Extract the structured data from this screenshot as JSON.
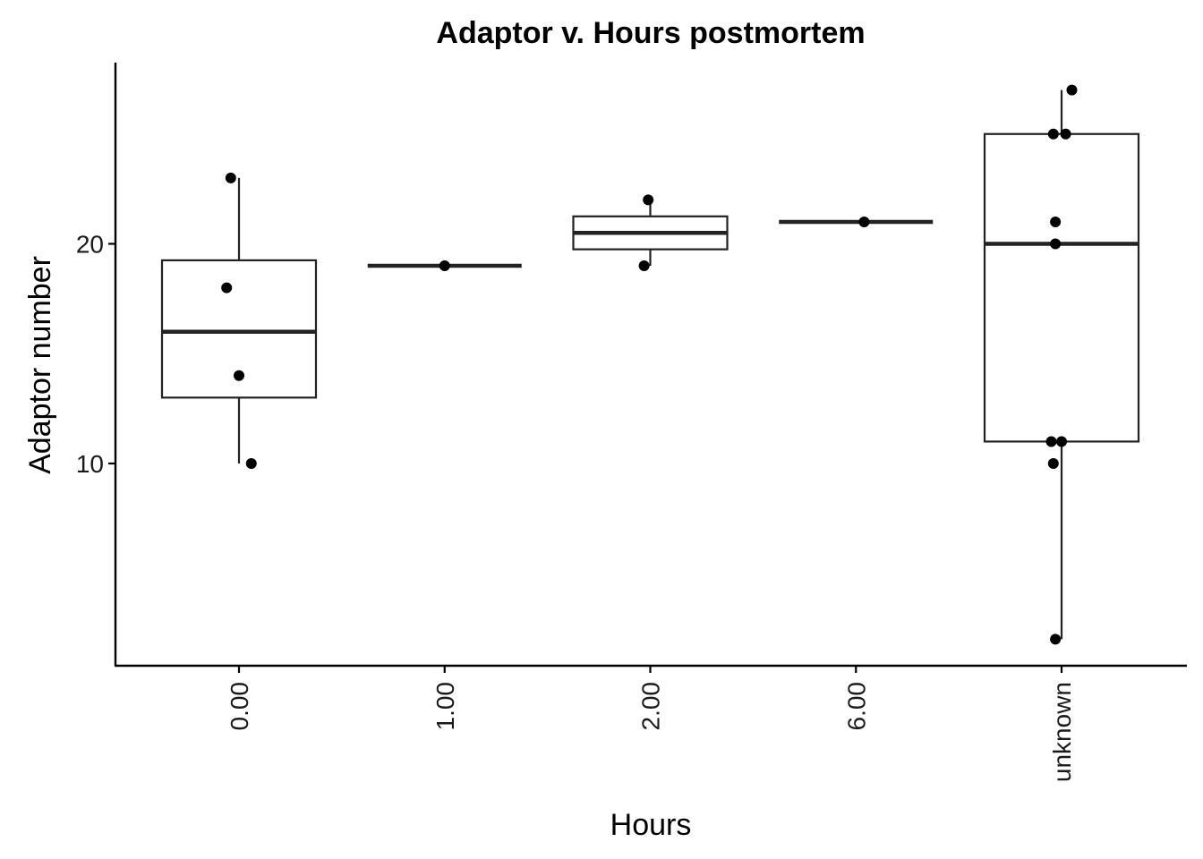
{
  "chart_data": {
    "type": "boxplot",
    "title": "Adaptor v. Hours postmortem",
    "xlabel": "Hours",
    "ylabel": "Adaptor number",
    "categories": [
      "0.00",
      "1.00",
      "2.00",
      "6.00",
      "unknown"
    ],
    "y_ticks": [
      10,
      20
    ],
    "ylim": [
      1,
      28.8
    ],
    "grid": false,
    "legend": "none",
    "boxes": [
      {
        "category": "0.00",
        "q1": 13,
        "median": 16,
        "q3": 19.25,
        "whisker_low": 10,
        "whisker_high": 23
      },
      {
        "category": "1.00",
        "q1": 19,
        "median": 19,
        "q3": 19,
        "whisker_low": 19,
        "whisker_high": 19
      },
      {
        "category": "2.00",
        "q1": 19.75,
        "median": 20.5,
        "q3": 21.25,
        "whisker_low": 19,
        "whisker_high": 22
      },
      {
        "category": "6.00",
        "q1": 21,
        "median": 21,
        "q3": 21,
        "whisker_low": 21,
        "whisker_high": 21
      },
      {
        "category": "unknown",
        "q1": 11,
        "median": 20,
        "q3": 25,
        "whisker_low": 2,
        "whisker_high": 27
      }
    ],
    "points": [
      {
        "category": "0.00",
        "y": 23,
        "jitter": -0.04
      },
      {
        "category": "0.00",
        "y": 18,
        "jitter": -0.06
      },
      {
        "category": "0.00",
        "y": 14,
        "jitter": 0.0
      },
      {
        "category": "0.00",
        "y": 10,
        "jitter": 0.06
      },
      {
        "category": "1.00",
        "y": 19,
        "jitter": 0.0
      },
      {
        "category": "2.00",
        "y": 22,
        "jitter": -0.01
      },
      {
        "category": "2.00",
        "y": 19,
        "jitter": -0.03
      },
      {
        "category": "6.00",
        "y": 21,
        "jitter": 0.04
      },
      {
        "category": "unknown",
        "y": 27,
        "jitter": 0.05
      },
      {
        "category": "unknown",
        "y": 25,
        "jitter": -0.04
      },
      {
        "category": "unknown",
        "y": 25,
        "jitter": 0.02
      },
      {
        "category": "unknown",
        "y": 21,
        "jitter": -0.03
      },
      {
        "category": "unknown",
        "y": 20,
        "jitter": -0.03
      },
      {
        "category": "unknown",
        "y": 11,
        "jitter": -0.05
      },
      {
        "category": "unknown",
        "y": 11,
        "jitter": 0.0
      },
      {
        "category": "unknown",
        "y": 10,
        "jitter": -0.04
      },
      {
        "category": "unknown",
        "y": 2,
        "jitter": -0.03
      }
    ],
    "colors": {
      "box_stroke": "#222222",
      "point": "#000000",
      "axis": "#000000"
    }
  }
}
